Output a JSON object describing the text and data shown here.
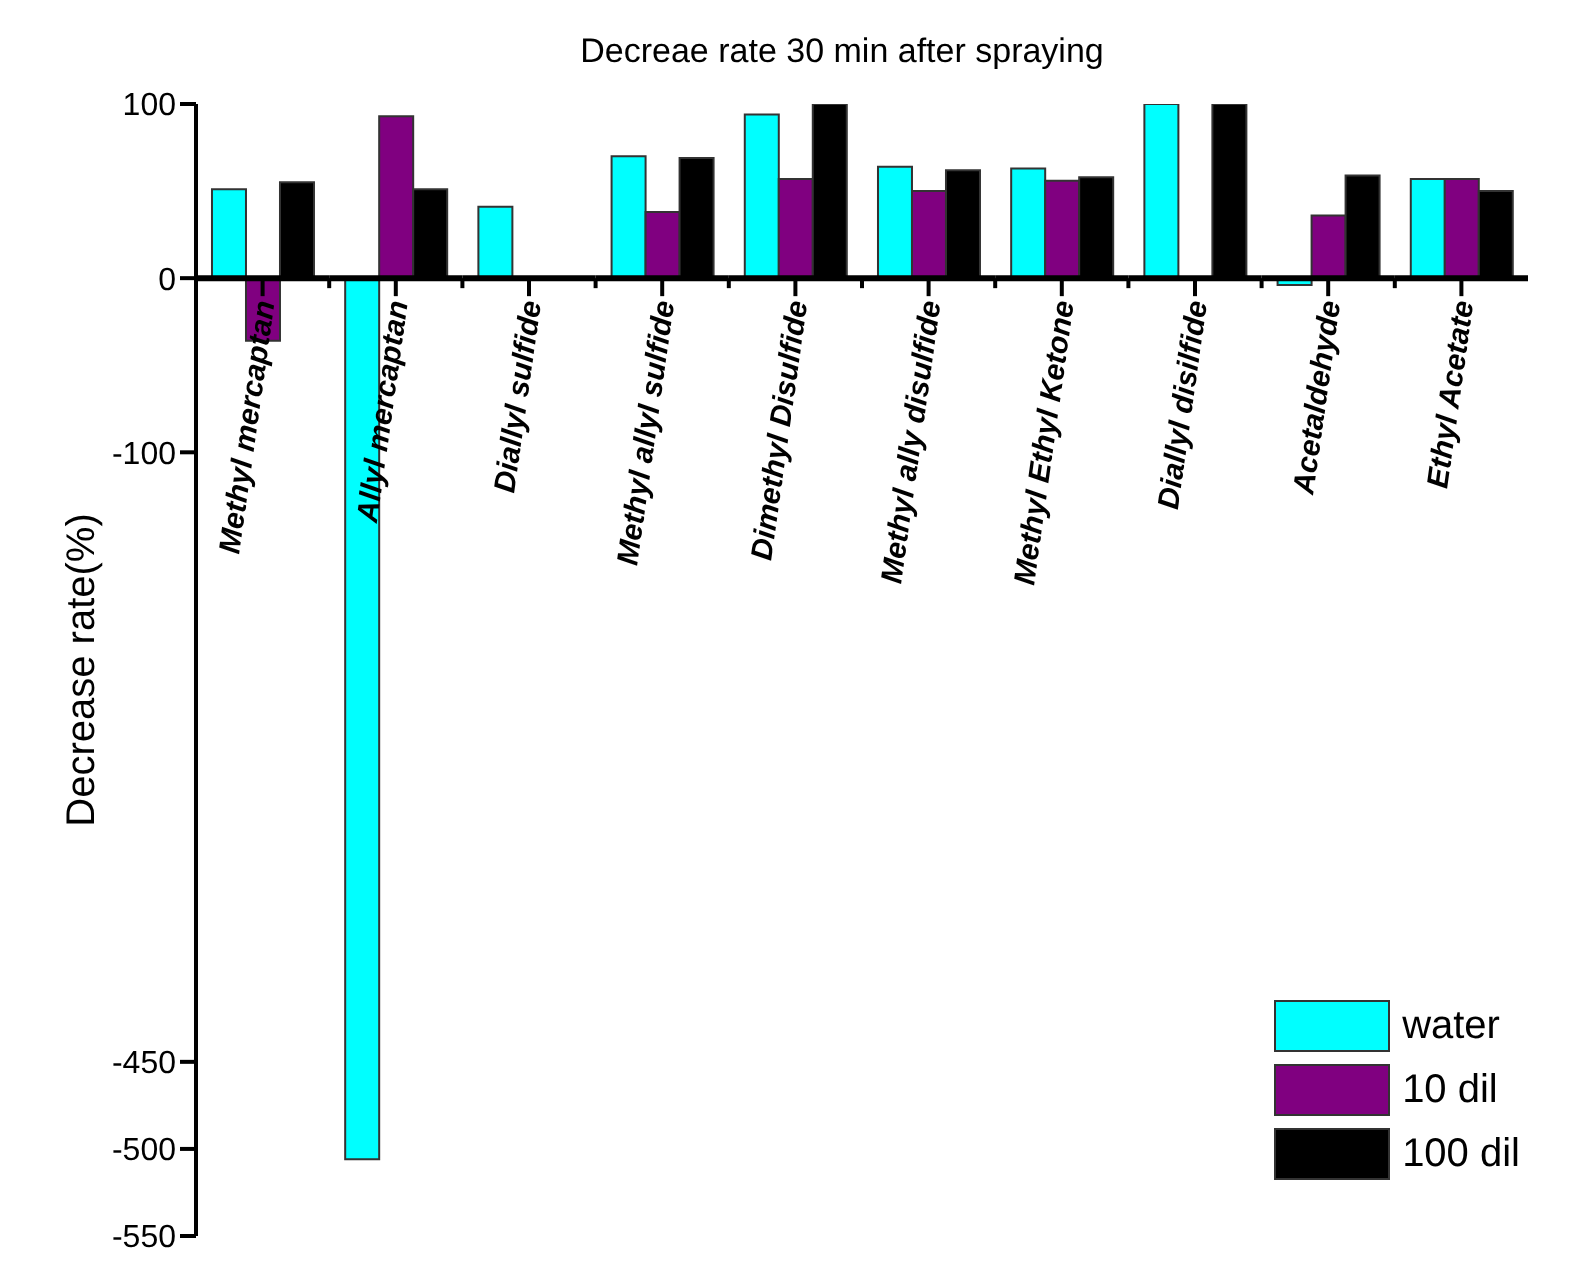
{
  "chart_data": {
    "type": "bar",
    "title": "Decreae rate 30 min after spraying",
    "ylabel": "Decrease rate(%)",
    "categories": [
      "Methyl mercaptan",
      "Allyl mercaptan",
      "Diallyl sulfide",
      "Methyl allyl sulfide",
      "Dimethyl Disulfide",
      "Methyl ally disulfide",
      "Methyl Ethyl Ketone",
      "Diallyl disilfide",
      "Acetaldehyde",
      "Ethyl Acetate"
    ],
    "series": [
      {
        "name": "water",
        "color": "#00ffff",
        "values": [
          51,
          -506,
          41,
          70,
          94,
          64,
          63,
          100,
          -4,
          57
        ]
      },
      {
        "name": "10 dil",
        "color": "#800080",
        "values": [
          -36,
          93,
          null,
          38,
          57,
          50,
          56,
          null,
          36,
          57
        ]
      },
      {
        "name": "100 dil",
        "color": "#000000",
        "values": [
          55,
          51,
          null,
          69,
          100,
          62,
          58,
          100,
          59,
          50
        ]
      }
    ],
    "ylim": [
      -550,
      100
    ],
    "yticks": [
      100,
      0,
      -100,
      -450,
      -500,
      -550
    ],
    "grid": false,
    "legend": "bottom right"
  }
}
